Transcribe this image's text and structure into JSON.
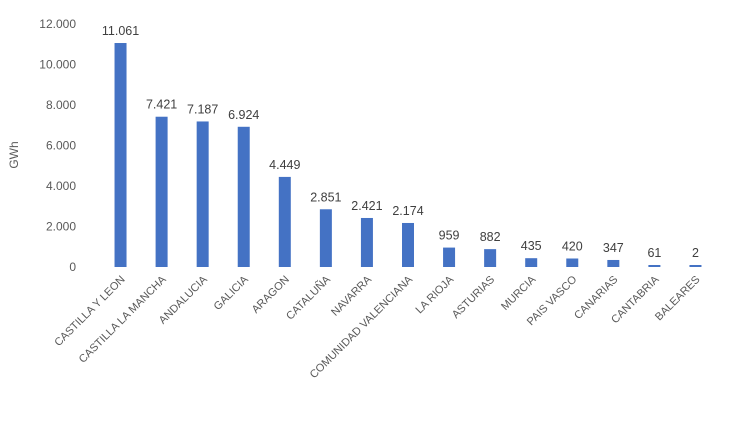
{
  "chart_data": {
    "type": "bar",
    "title": "",
    "xlabel": "",
    "ylabel": "GWh",
    "ylim": [
      0,
      12000
    ],
    "yticks": [
      0,
      2000,
      4000,
      6000,
      8000,
      10000,
      12000
    ],
    "ytick_labels": [
      "0",
      "2.000",
      "4.000",
      "6.000",
      "8.000",
      "10.000",
      "12.000"
    ],
    "grid": false,
    "legend": "none",
    "bar_color": "#4472c4",
    "categories": [
      "CASTILLA Y LEON",
      "CASTILLA LA MANCHA",
      "ANDALUCIA",
      "GALICIA",
      "ARAGON",
      "CATALUÑA",
      "NAVARRA",
      "COMUNIDAD VALENCIANA",
      "LA RIOJA",
      "ASTURIAS",
      "MURCIA",
      "PAIS VASCO",
      "CANARIAS",
      "CANTABRIA",
      "BALEARES"
    ],
    "values": [
      11061,
      7421,
      7187,
      6924,
      4449,
      2851,
      2421,
      2174,
      959,
      882,
      435,
      420,
      347,
      61,
      2
    ],
    "data_labels": [
      "11.061",
      "7.421",
      "7.187",
      "6.924",
      "4.449",
      "2.851",
      "2.421",
      "2.174",
      "959",
      "882",
      "435",
      "420",
      "347",
      "61",
      "2"
    ]
  }
}
